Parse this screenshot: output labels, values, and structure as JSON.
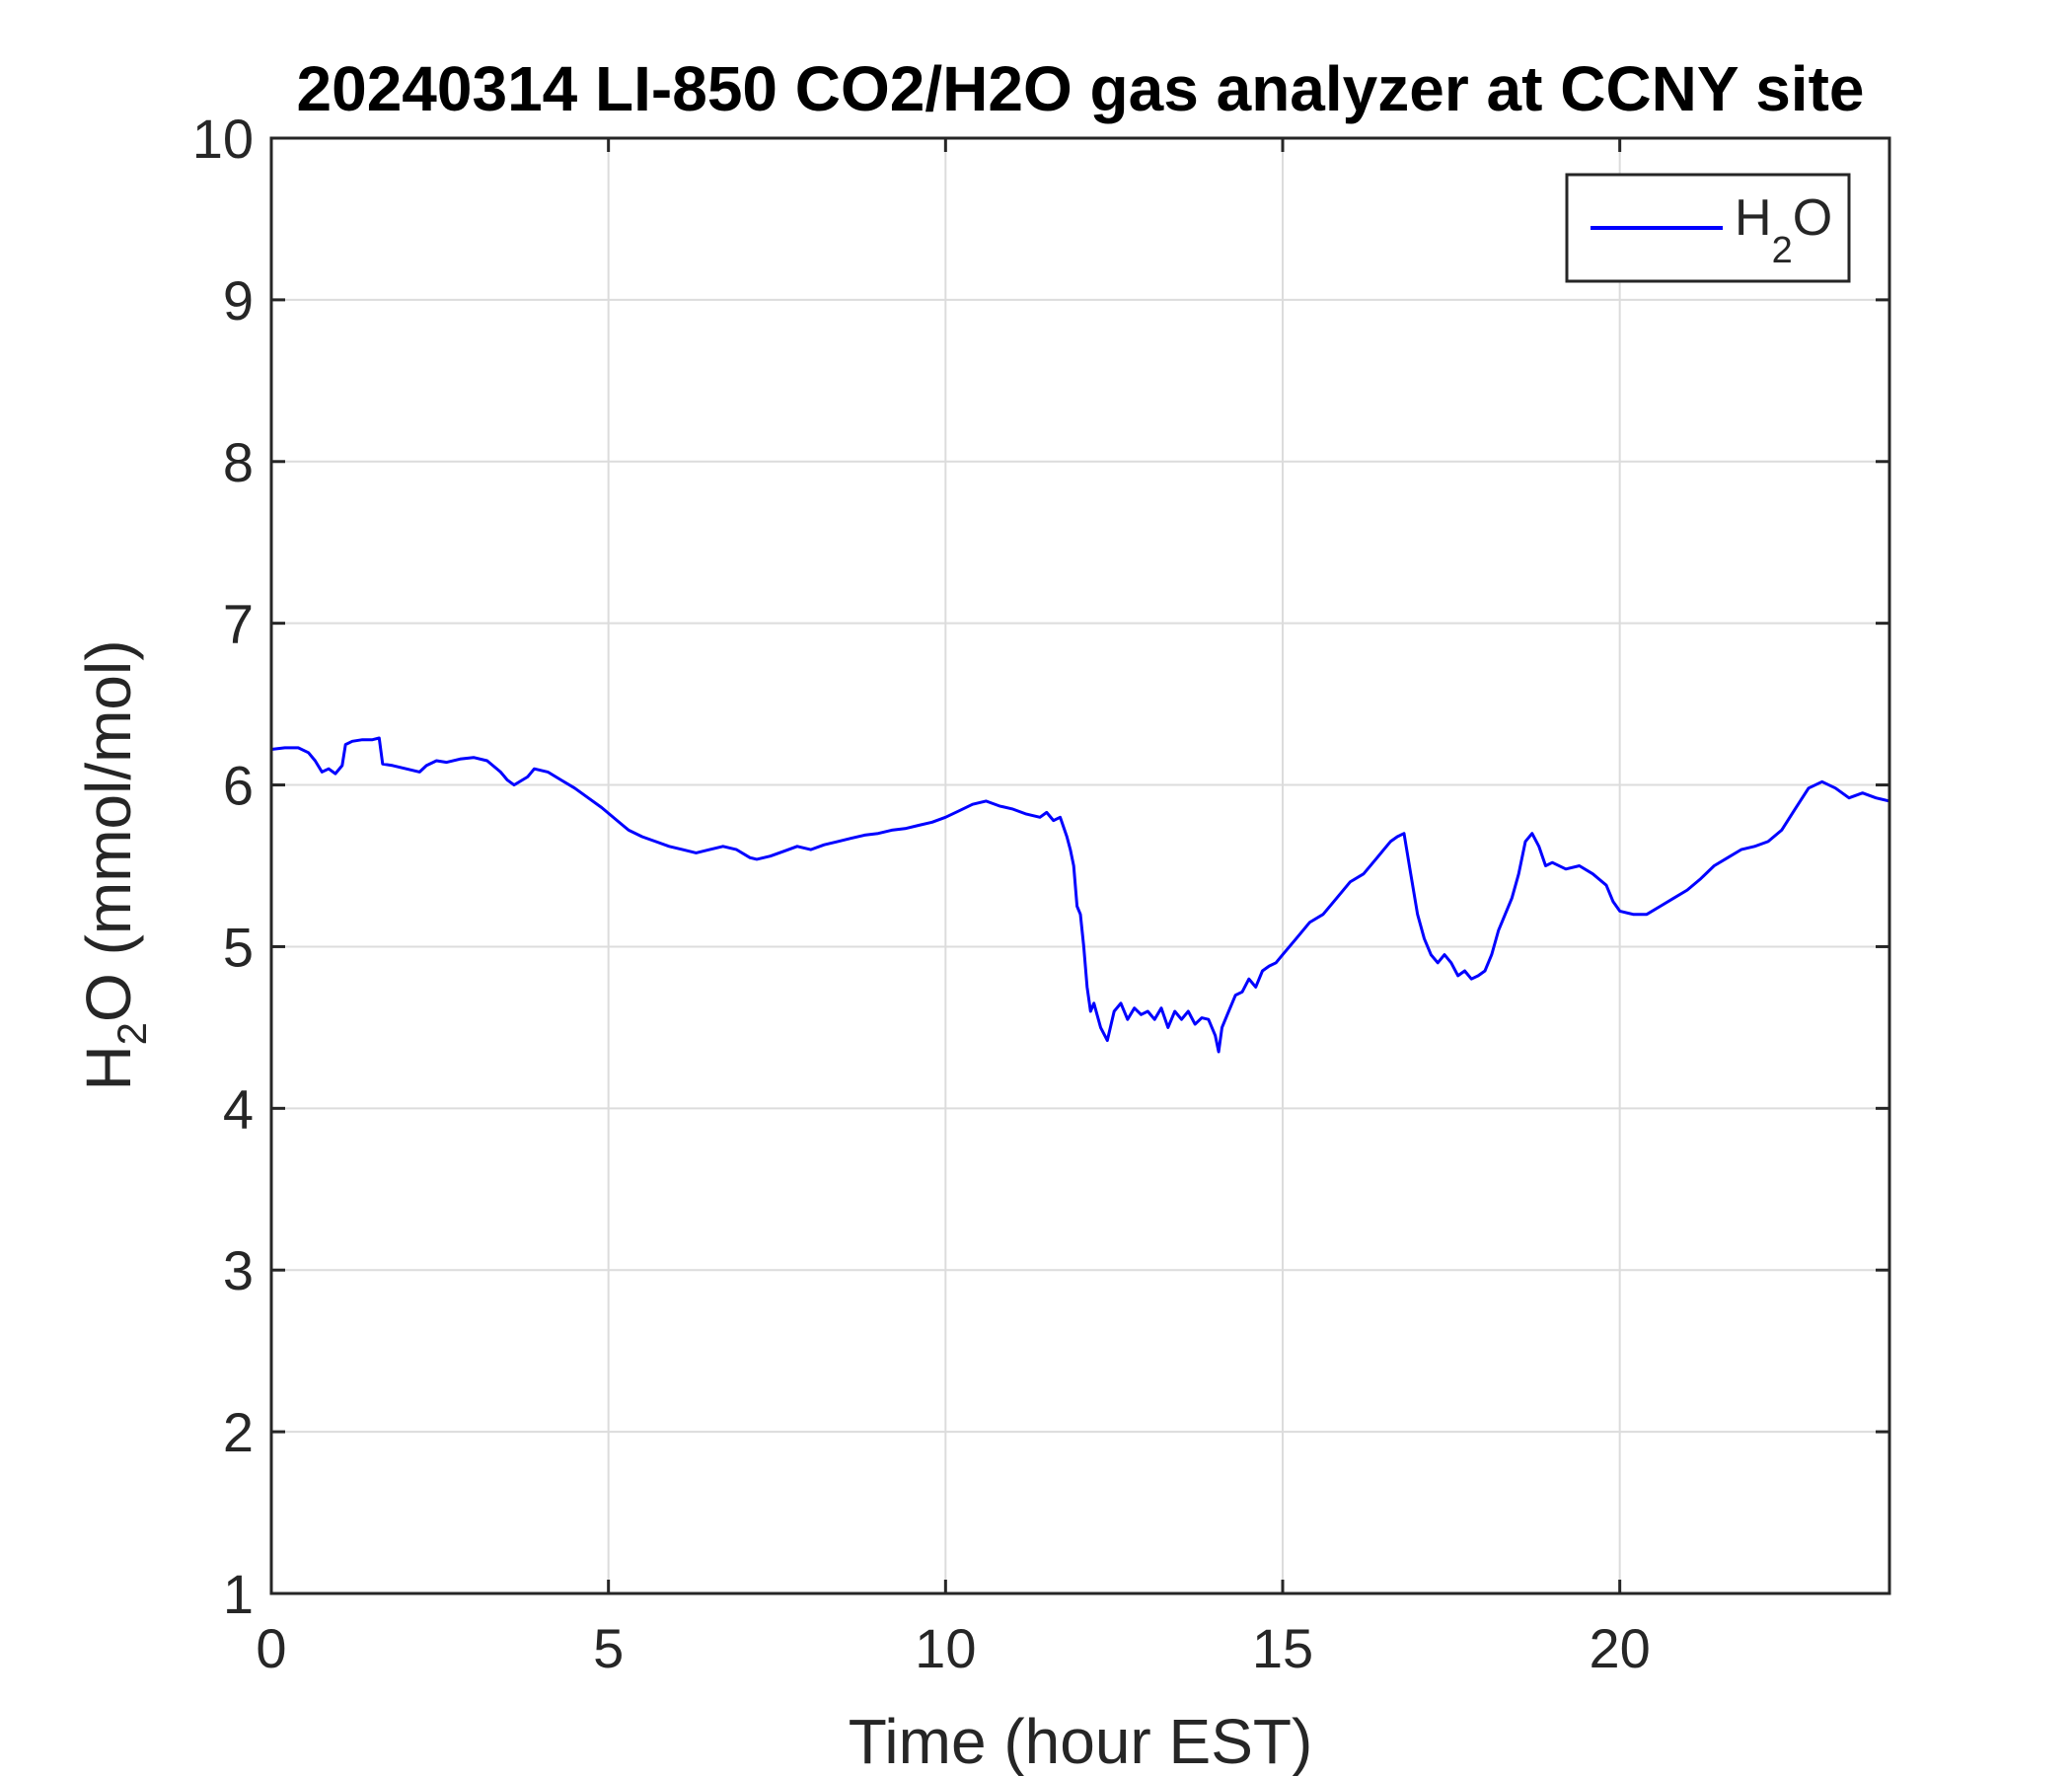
{
  "chart_data": {
    "type": "line",
    "title": "20240314 LI-850 CO2/H2O gas analyzer at CCNY site",
    "xlabel": "Time (hour EST)",
    "ylabel": {
      "base": "H",
      "sub": "2",
      "rest": "O (mmol/mol)"
    },
    "xlim": [
      0,
      24
    ],
    "ylim": [
      1,
      10
    ],
    "xticks": [
      0,
      5,
      10,
      15,
      20
    ],
    "yticks": [
      1,
      2,
      3,
      4,
      5,
      6,
      7,
      8,
      9,
      10
    ],
    "grid": true,
    "legend": {
      "position": "top-right",
      "entries": [
        {
          "base": "H",
          "sub": "2",
          "rest": "O"
        }
      ]
    },
    "series": [
      {
        "name": "H2O",
        "color": "#0000ff",
        "x": [
          0.0,
          0.2,
          0.4,
          0.55,
          0.65,
          0.75,
          0.85,
          0.95,
          1.05,
          1.1,
          1.2,
          1.35,
          1.5,
          1.6,
          1.65,
          1.8,
          2.0,
          2.2,
          2.3,
          2.45,
          2.6,
          2.8,
          3.0,
          3.2,
          3.4,
          3.5,
          3.6,
          3.8,
          3.9,
          4.1,
          4.3,
          4.5,
          4.7,
          4.9,
          5.1,
          5.3,
          5.5,
          5.7,
          5.9,
          6.1,
          6.3,
          6.5,
          6.7,
          6.9,
          7.1,
          7.2,
          7.4,
          7.6,
          7.8,
          8.0,
          8.2,
          8.4,
          8.6,
          8.8,
          9.0,
          9.2,
          9.4,
          9.6,
          9.8,
          10.0,
          10.2,
          10.4,
          10.6,
          10.8,
          11.0,
          11.2,
          11.4,
          11.5,
          11.6,
          11.7,
          11.8,
          11.85,
          11.9,
          11.95,
          12.0,
          12.05,
          12.1,
          12.15,
          12.2,
          12.3,
          12.4,
          12.5,
          12.6,
          12.7,
          12.8,
          12.9,
          13.0,
          13.1,
          13.2,
          13.3,
          13.4,
          13.5,
          13.6,
          13.7,
          13.8,
          13.9,
          14.0,
          14.05,
          14.1,
          14.2,
          14.3,
          14.4,
          14.5,
          14.6,
          14.7,
          14.8,
          14.9,
          15.0,
          15.2,
          15.4,
          15.6,
          15.8,
          16.0,
          16.2,
          16.4,
          16.5,
          16.6,
          16.7,
          16.8,
          16.9,
          17.0,
          17.1,
          17.2,
          17.3,
          17.4,
          17.5,
          17.6,
          17.7,
          17.8,
          17.9,
          18.0,
          18.1,
          18.2,
          18.3,
          18.4,
          18.5,
          18.6,
          18.7,
          18.8,
          18.9,
          19.0,
          19.2,
          19.4,
          19.6,
          19.8,
          19.9,
          20.0,
          20.2,
          20.4,
          20.6,
          20.8,
          21.0,
          21.2,
          21.4,
          21.6,
          21.8,
          22.0,
          22.2,
          22.4,
          22.6,
          22.8,
          23.0,
          23.2,
          23.4,
          23.6,
          23.8,
          24.0
        ],
        "y": [
          6.22,
          6.23,
          6.23,
          6.2,
          6.15,
          6.08,
          6.1,
          6.07,
          6.12,
          6.25,
          6.27,
          6.28,
          6.28,
          6.29,
          6.13,
          6.12,
          6.1,
          6.08,
          6.12,
          6.15,
          6.14,
          6.16,
          6.17,
          6.15,
          6.08,
          6.03,
          6.0,
          6.05,
          6.1,
          6.08,
          6.03,
          5.98,
          5.92,
          5.86,
          5.79,
          5.72,
          5.68,
          5.65,
          5.62,
          5.6,
          5.58,
          5.6,
          5.62,
          5.6,
          5.55,
          5.54,
          5.56,
          5.59,
          5.62,
          5.6,
          5.63,
          5.65,
          5.67,
          5.69,
          5.7,
          5.72,
          5.73,
          5.75,
          5.77,
          5.8,
          5.84,
          5.88,
          5.9,
          5.87,
          5.85,
          5.82,
          5.8,
          5.83,
          5.78,
          5.8,
          5.68,
          5.6,
          5.5,
          5.25,
          5.2,
          5.0,
          4.75,
          4.6,
          4.65,
          4.5,
          4.42,
          4.6,
          4.65,
          4.55,
          4.62,
          4.58,
          4.6,
          4.55,
          4.62,
          4.5,
          4.6,
          4.55,
          4.6,
          4.52,
          4.56,
          4.55,
          4.45,
          4.35,
          4.5,
          4.6,
          4.7,
          4.72,
          4.8,
          4.75,
          4.85,
          4.88,
          4.9,
          4.95,
          5.05,
          5.15,
          5.2,
          5.3,
          5.4,
          5.45,
          5.55,
          5.6,
          5.65,
          5.68,
          5.7,
          5.45,
          5.2,
          5.05,
          4.95,
          4.9,
          4.95,
          4.9,
          4.82,
          4.85,
          4.8,
          4.82,
          4.85,
          4.95,
          5.1,
          5.2,
          5.3,
          5.45,
          5.65,
          5.7,
          5.62,
          5.5,
          5.52,
          5.48,
          5.5,
          5.45,
          5.38,
          5.28,
          5.22,
          5.2,
          5.2,
          5.25,
          5.3,
          5.35,
          5.42,
          5.5,
          5.55,
          5.6,
          5.62,
          5.65,
          5.72,
          5.85,
          5.98,
          6.02,
          5.98,
          5.92,
          5.95,
          5.92,
          5.9
        ]
      }
    ]
  }
}
